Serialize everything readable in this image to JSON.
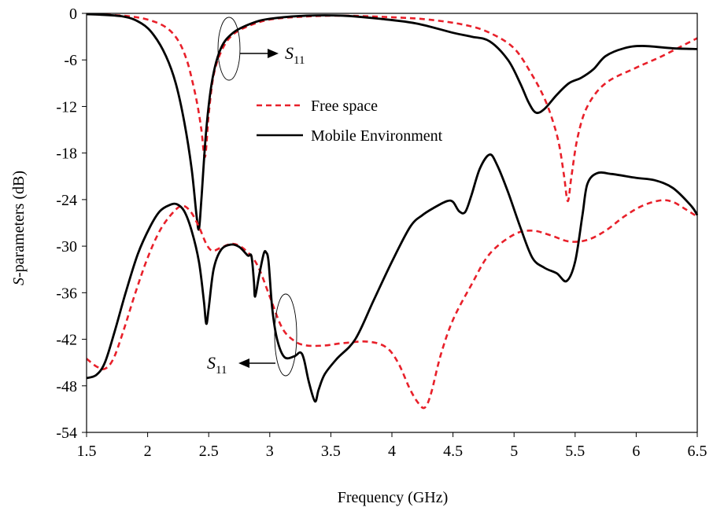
{
  "chart_data": {
    "type": "line",
    "title": "",
    "xlabel": "Frequency (GHz)",
    "ylabel_italic": "S",
    "ylabel_rest": "-parameters (dB)",
    "xlim": [
      1.5,
      6.5
    ],
    "ylim": [
      -54,
      0
    ],
    "xticks": [
      1.5,
      2,
      2.5,
      3,
      3.5,
      4,
      4.5,
      5,
      5.5,
      6,
      6.5
    ],
    "xtick_labels": [
      "1.5",
      "2",
      "2.5",
      "3",
      "3.5",
      "4",
      "4.5",
      "5",
      "5.5",
      "6",
      "6.5"
    ],
    "yticks": [
      0,
      -6,
      -12,
      -18,
      -24,
      -30,
      -36,
      -42,
      -48,
      -54
    ],
    "ytick_labels": [
      "0",
      "-6",
      "-12",
      "-18",
      "-24",
      "-30",
      "-36",
      "-42",
      "-48",
      "-54"
    ],
    "grid": false,
    "legend": {
      "placement": "top-center",
      "entries": [
        "Free space",
        "Mobile Environment"
      ]
    },
    "annotations": [
      {
        "main": "S",
        "sub": "11",
        "arrow": "right",
        "at": [
          2.66,
          -5.0
        ]
      },
      {
        "main": "S",
        "sub": "11",
        "arrow": "left",
        "at": [
          3.12,
          -44.5
        ]
      }
    ],
    "series": [
      {
        "name": "Free space",
        "group": "S11",
        "color": "#e8202a",
        "dash": true,
        "points": [
          [
            1.5,
            -0.1
          ],
          [
            1.8,
            -0.3
          ],
          [
            2.0,
            -0.8
          ],
          [
            2.15,
            -1.8
          ],
          [
            2.25,
            -3.5
          ],
          [
            2.32,
            -6
          ],
          [
            2.37,
            -9
          ],
          [
            2.41,
            -12
          ],
          [
            2.44,
            -15
          ],
          [
            2.47,
            -18.5
          ],
          [
            2.5,
            -13
          ],
          [
            2.54,
            -8
          ],
          [
            2.6,
            -5
          ],
          [
            2.68,
            -3
          ],
          [
            2.8,
            -1.8
          ],
          [
            3.0,
            -0.8
          ],
          [
            3.3,
            -0.4
          ],
          [
            3.6,
            -0.3
          ],
          [
            4.0,
            -0.5
          ],
          [
            4.3,
            -0.8
          ],
          [
            4.6,
            -1.5
          ],
          [
            4.8,
            -2.5
          ],
          [
            5.0,
            -4.5
          ],
          [
            5.15,
            -8
          ],
          [
            5.25,
            -11
          ],
          [
            5.32,
            -14
          ],
          [
            5.37,
            -17
          ],
          [
            5.41,
            -21
          ],
          [
            5.44,
            -24.2
          ],
          [
            5.47,
            -21
          ],
          [
            5.52,
            -16
          ],
          [
            5.6,
            -12
          ],
          [
            5.75,
            -9
          ],
          [
            6.0,
            -7
          ],
          [
            6.2,
            -5.6
          ],
          [
            6.4,
            -4
          ],
          [
            6.5,
            -3.2
          ]
        ]
      },
      {
        "name": "Mobile Environment",
        "group": "S11",
        "color": "#000000",
        "dash": false,
        "points": [
          [
            1.5,
            -0.1
          ],
          [
            1.8,
            -0.4
          ],
          [
            1.95,
            -1.3
          ],
          [
            2.05,
            -2.8
          ],
          [
            2.15,
            -5.5
          ],
          [
            2.23,
            -9
          ],
          [
            2.3,
            -14
          ],
          [
            2.36,
            -20
          ],
          [
            2.4,
            -26
          ],
          [
            2.42,
            -27.8
          ],
          [
            2.44,
            -24
          ],
          [
            2.48,
            -15
          ],
          [
            2.53,
            -8.5
          ],
          [
            2.6,
            -4.5
          ],
          [
            2.7,
            -2.5
          ],
          [
            2.85,
            -1.3
          ],
          [
            3.0,
            -0.7
          ],
          [
            3.3,
            -0.3
          ],
          [
            3.6,
            -0.3
          ],
          [
            3.9,
            -0.7
          ],
          [
            4.2,
            -1.3
          ],
          [
            4.5,
            -2.5
          ],
          [
            4.65,
            -3
          ],
          [
            4.8,
            -3.6
          ],
          [
            4.95,
            -6
          ],
          [
            5.05,
            -9
          ],
          [
            5.12,
            -11.5
          ],
          [
            5.18,
            -12.8
          ],
          [
            5.25,
            -12.3
          ],
          [
            5.35,
            -10.5
          ],
          [
            5.45,
            -9
          ],
          [
            5.55,
            -8.3
          ],
          [
            5.65,
            -7.2
          ],
          [
            5.75,
            -5.5
          ],
          [
            5.9,
            -4.5
          ],
          [
            6.05,
            -4.2
          ],
          [
            6.3,
            -4.5
          ],
          [
            6.5,
            -4.6
          ]
        ]
      },
      {
        "name": "Free space",
        "group": "S21",
        "color": "#e8202a",
        "dash": true,
        "points": [
          [
            1.5,
            -44.5
          ],
          [
            1.58,
            -45.5
          ],
          [
            1.65,
            -45.8
          ],
          [
            1.72,
            -44.5
          ],
          [
            1.8,
            -41
          ],
          [
            1.9,
            -36
          ],
          [
            2.0,
            -31.5
          ],
          [
            2.1,
            -28
          ],
          [
            2.2,
            -25.8
          ],
          [
            2.28,
            -24.8
          ],
          [
            2.35,
            -25.5
          ],
          [
            2.42,
            -27.5
          ],
          [
            2.48,
            -29.7
          ],
          [
            2.53,
            -30.6
          ],
          [
            2.6,
            -30.2
          ],
          [
            2.7,
            -29.7
          ],
          [
            2.8,
            -30.5
          ],
          [
            2.9,
            -32.5
          ],
          [
            3.0,
            -36.5
          ],
          [
            3.1,
            -40.5
          ],
          [
            3.2,
            -42.2
          ],
          [
            3.3,
            -42.8
          ],
          [
            3.45,
            -42.8
          ],
          [
            3.6,
            -42.5
          ],
          [
            3.8,
            -42.3
          ],
          [
            3.95,
            -43
          ],
          [
            4.05,
            -45
          ],
          [
            4.15,
            -48.5
          ],
          [
            4.22,
            -50.3
          ],
          [
            4.27,
            -50.8
          ],
          [
            4.32,
            -49
          ],
          [
            4.4,
            -44
          ],
          [
            4.5,
            -39.5
          ],
          [
            4.65,
            -35
          ],
          [
            4.8,
            -31
          ],
          [
            5.0,
            -28.5
          ],
          [
            5.15,
            -28
          ],
          [
            5.3,
            -28.6
          ],
          [
            5.45,
            -29.4
          ],
          [
            5.6,
            -29.2
          ],
          [
            5.75,
            -28
          ],
          [
            5.9,
            -26.2
          ],
          [
            6.05,
            -24.8
          ],
          [
            6.2,
            -24.1
          ],
          [
            6.3,
            -24.3
          ],
          [
            6.4,
            -25.2
          ],
          [
            6.5,
            -26.2
          ]
        ]
      },
      {
        "name": "Mobile Environment",
        "group": "S21",
        "color": "#000000",
        "dash": false,
        "points": [
          [
            1.5,
            -47
          ],
          [
            1.58,
            -46.6
          ],
          [
            1.65,
            -45
          ],
          [
            1.73,
            -41
          ],
          [
            1.82,
            -36
          ],
          [
            1.92,
            -31
          ],
          [
            2.02,
            -27.5
          ],
          [
            2.1,
            -25.5
          ],
          [
            2.18,
            -24.7
          ],
          [
            2.24,
            -24.6
          ],
          [
            2.3,
            -25.5
          ],
          [
            2.36,
            -28
          ],
          [
            2.42,
            -32
          ],
          [
            2.46,
            -37
          ],
          [
            2.48,
            -40
          ],
          [
            2.5,
            -38
          ],
          [
            2.54,
            -33
          ],
          [
            2.6,
            -30.5
          ],
          [
            2.68,
            -29.8
          ],
          [
            2.75,
            -30.1
          ],
          [
            2.82,
            -31.2
          ],
          [
            2.85,
            -31.3
          ],
          [
            2.87,
            -34.5
          ],
          [
            2.88,
            -36.5
          ],
          [
            2.91,
            -34
          ],
          [
            2.95,
            -31
          ],
          [
            2.97,
            -30.8
          ],
          [
            2.99,
            -32
          ],
          [
            3.02,
            -38
          ],
          [
            3.06,
            -42
          ],
          [
            3.12,
            -44.3
          ],
          [
            3.2,
            -44.2
          ],
          [
            3.25,
            -43.7
          ],
          [
            3.28,
            -44.6
          ],
          [
            3.32,
            -47.5
          ],
          [
            3.37,
            -50
          ],
          [
            3.4,
            -48.5
          ],
          [
            3.45,
            -46.5
          ],
          [
            3.55,
            -44.5
          ],
          [
            3.7,
            -42
          ],
          [
            3.85,
            -37
          ],
          [
            4.0,
            -32
          ],
          [
            4.15,
            -27.5
          ],
          [
            4.25,
            -26
          ],
          [
            4.35,
            -25
          ],
          [
            4.45,
            -24.2
          ],
          [
            4.5,
            -24.3
          ],
          [
            4.55,
            -25.5
          ],
          [
            4.6,
            -25.6
          ],
          [
            4.65,
            -23.5
          ],
          [
            4.72,
            -20
          ],
          [
            4.8,
            -18.2
          ],
          [
            4.86,
            -19.5
          ],
          [
            4.95,
            -23
          ],
          [
            5.05,
            -27.5
          ],
          [
            5.15,
            -31.5
          ],
          [
            5.25,
            -32.8
          ],
          [
            5.35,
            -33.5
          ],
          [
            5.43,
            -34.5
          ],
          [
            5.5,
            -32
          ],
          [
            5.56,
            -26
          ],
          [
            5.6,
            -22
          ],
          [
            5.68,
            -20.6
          ],
          [
            5.8,
            -20.7
          ],
          [
            6.0,
            -21.2
          ],
          [
            6.15,
            -21.5
          ],
          [
            6.3,
            -22.5
          ],
          [
            6.45,
            -24.8
          ],
          [
            6.5,
            -26
          ]
        ]
      }
    ]
  }
}
